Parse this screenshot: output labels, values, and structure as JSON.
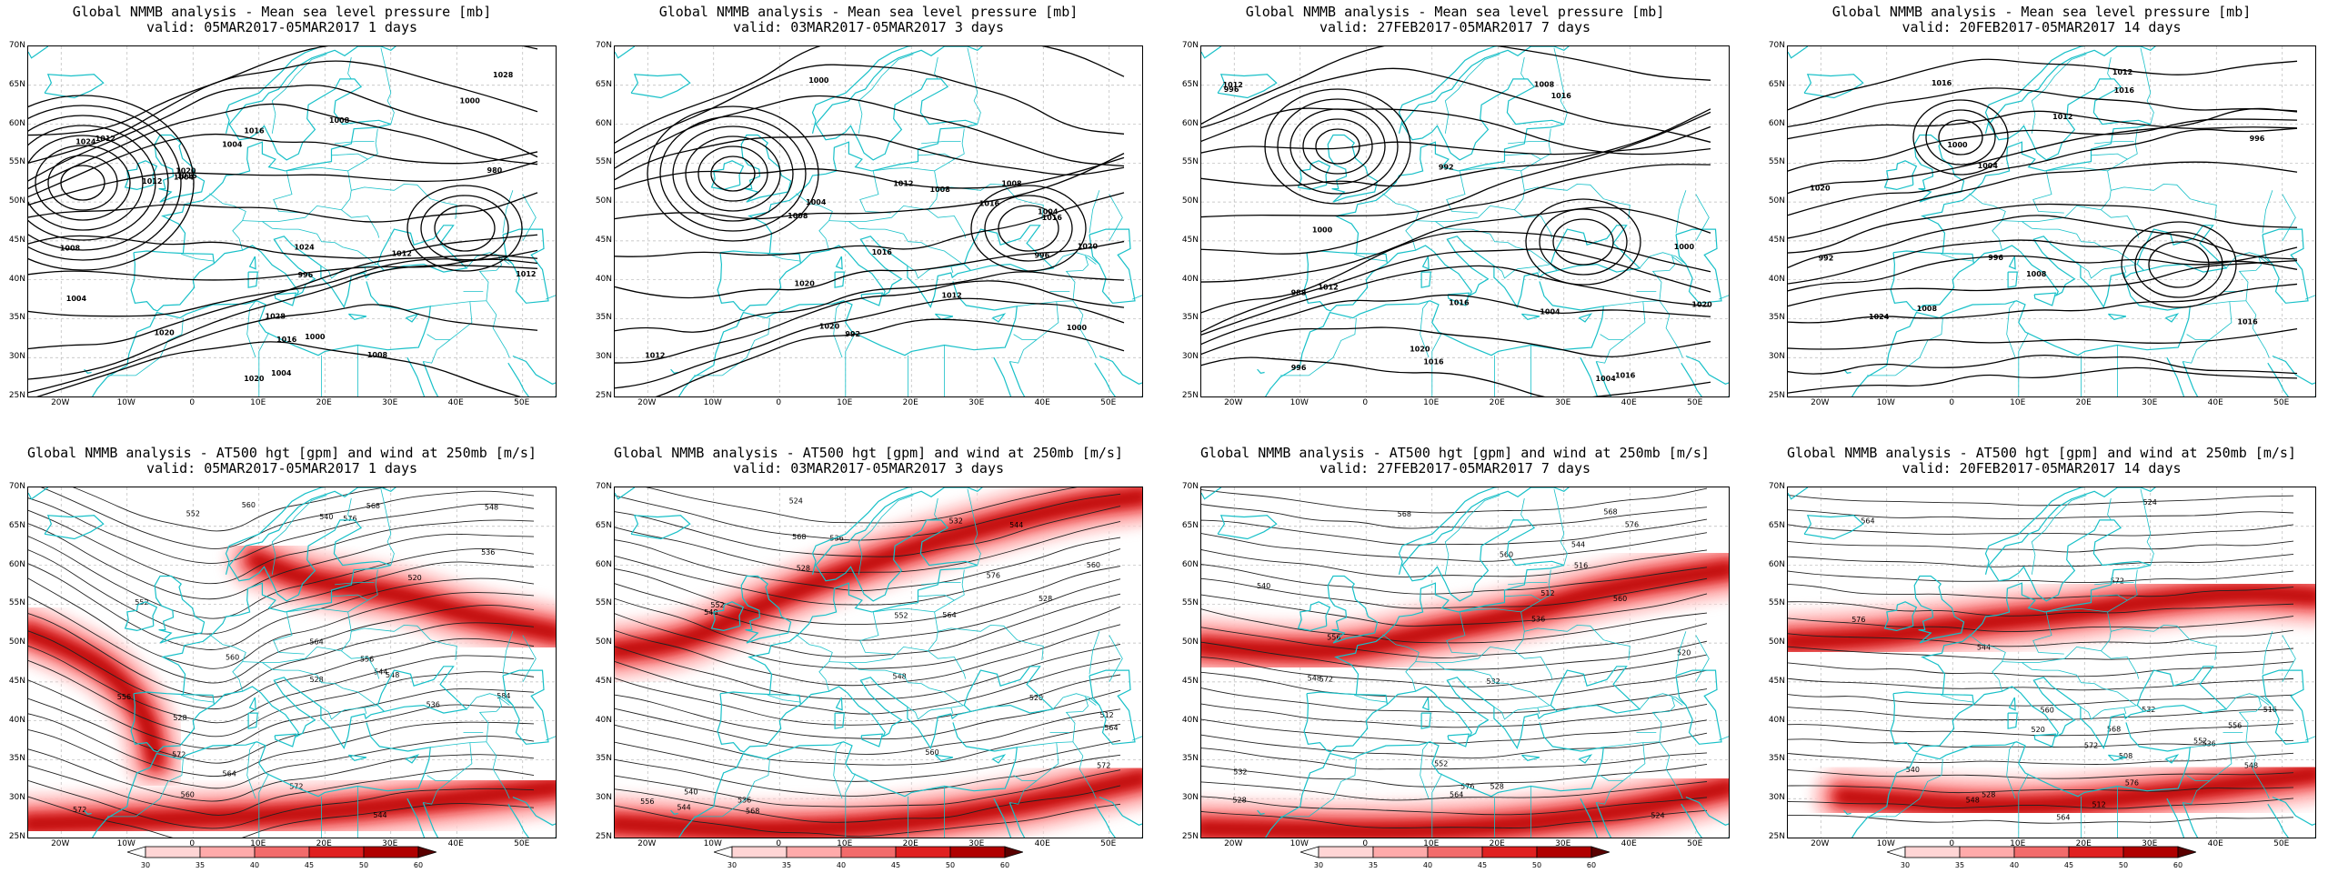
{
  "panels": [
    {
      "row": 0,
      "col": 0,
      "title": "Global NMMB analysis - Mean sea level pressure [mb]",
      "valid": "valid: 05MAR2017-05MAR2017  1 days",
      "kind": "mslp",
      "seed": 1
    },
    {
      "row": 0,
      "col": 1,
      "title": "Global NMMB analysis - Mean sea level pressure [mb]",
      "valid": "valid: 03MAR2017-05MAR2017  3 days",
      "kind": "mslp",
      "seed": 2
    },
    {
      "row": 0,
      "col": 2,
      "title": "Global NMMB analysis - Mean sea level pressure [mb]",
      "valid": "valid: 27FEB2017-05MAR2017  7 days",
      "kind": "mslp",
      "seed": 3
    },
    {
      "row": 0,
      "col": 3,
      "title": "Global NMMB analysis - Mean sea level pressure [mb]",
      "valid": "valid: 20FEB2017-05MAR2017  14 days",
      "kind": "mslp",
      "seed": 4
    },
    {
      "row": 1,
      "col": 0,
      "title": "Global NMMB analysis - AT500 hgt [gpm] and wind at 250mb [m/s]",
      "valid": "valid: 05MAR2017-05MAR2017  1 days",
      "kind": "z500",
      "seed": 1
    },
    {
      "row": 1,
      "col": 1,
      "title": "Global NMMB analysis - AT500 hgt [gpm] and wind at 250mb [m/s]",
      "valid": "valid: 03MAR2017-05MAR2017  3 days",
      "kind": "z500",
      "seed": 2
    },
    {
      "row": 1,
      "col": 2,
      "title": "Global NMMB analysis - AT500 hgt [gpm] and wind at 250mb [m/s]",
      "valid": "valid: 27FEB2017-05MAR2017  7 days",
      "kind": "z500",
      "seed": 3
    },
    {
      "row": 1,
      "col": 3,
      "title": "Global NMMB analysis - AT500 hgt [gpm] and wind at 250mb [m/s]",
      "valid": "valid: 20FEB2017-05MAR2017  14 days",
      "kind": "z500",
      "seed": 4
    }
  ],
  "lat_labels": [
    "70N",
    "65N",
    "60N",
    "55N",
    "50N",
    "45N",
    "40N",
    "35N",
    "30N",
    "25N"
  ],
  "lon_labels": [
    "20W",
    "10W",
    "0",
    "10E",
    "20E",
    "30E",
    "40E",
    "50E"
  ],
  "colorbar": {
    "ticks": [
      "30",
      "35",
      "40",
      "45",
      "50",
      "60"
    ],
    "colors": [
      "#ffffff",
      "#ffd5d5",
      "#ffaaaa",
      "#f26b6b",
      "#e02020",
      "#b00000",
      "#5a0000"
    ]
  },
  "mslp_labels": {
    "1": [
      "1012",
      "1008",
      "1004",
      "1000",
      "996",
      "1004",
      "1012",
      "1008",
      "1016",
      "1000",
      "1004",
      "1008",
      "1024",
      "1028",
      "1020",
      "1016",
      "1012",
      "1020",
      "1028",
      "1024",
      "980",
      "1016",
      "1020",
      "1012",
      "1004"
    ],
    "2": [
      "1012",
      "1008",
      "1004",
      "1000",
      "996",
      "992",
      "1008",
      "1000",
      "1004",
      "1012",
      "1016",
      "1020",
      "1008",
      "1012",
      "1016",
      "1020",
      "1016",
      "1020"
    ],
    "3": [
      "1004",
      "1000",
      "996",
      "992",
      "988",
      "1000",
      "1004",
      "1008",
      "996",
      "1012",
      "1016",
      "1012",
      "1016",
      "1020",
      "1016",
      "1020",
      "1016"
    ],
    "4": [
      "1000",
      "996",
      "992",
      "996",
      "1008",
      "1004",
      "1008",
      "1012",
      "1016",
      "1012",
      "1016",
      "1020",
      "1024",
      "1016"
    ]
  },
  "z500_labels": {
    "1": [
      "528",
      "520",
      "536",
      "544",
      "548",
      "552",
      "556",
      "560",
      "564",
      "572",
      "528",
      "536",
      "540",
      "544",
      "548",
      "552",
      "556",
      "560",
      "568",
      "572",
      "584",
      "560",
      "564",
      "572",
      "576"
    ],
    "2": [
      "536",
      "532",
      "528",
      "524",
      "520",
      "512",
      "528",
      "536",
      "540",
      "544",
      "548",
      "552",
      "556",
      "560",
      "564",
      "568",
      "572",
      "576",
      "544",
      "548",
      "552",
      "560",
      "564",
      "568"
    ],
    "3": [
      "532",
      "528",
      "524",
      "520",
      "516",
      "512",
      "528",
      "532",
      "536",
      "540",
      "544",
      "548",
      "552",
      "556",
      "560",
      "564",
      "568",
      "572",
      "576",
      "560",
      "568",
      "576"
    ],
    "4": [
      "524",
      "520",
      "516",
      "512",
      "508",
      "528",
      "532",
      "536",
      "540",
      "544",
      "548",
      "552",
      "556",
      "560",
      "564",
      "568",
      "572",
      "576",
      "548",
      "564",
      "572",
      "576"
    ]
  }
}
